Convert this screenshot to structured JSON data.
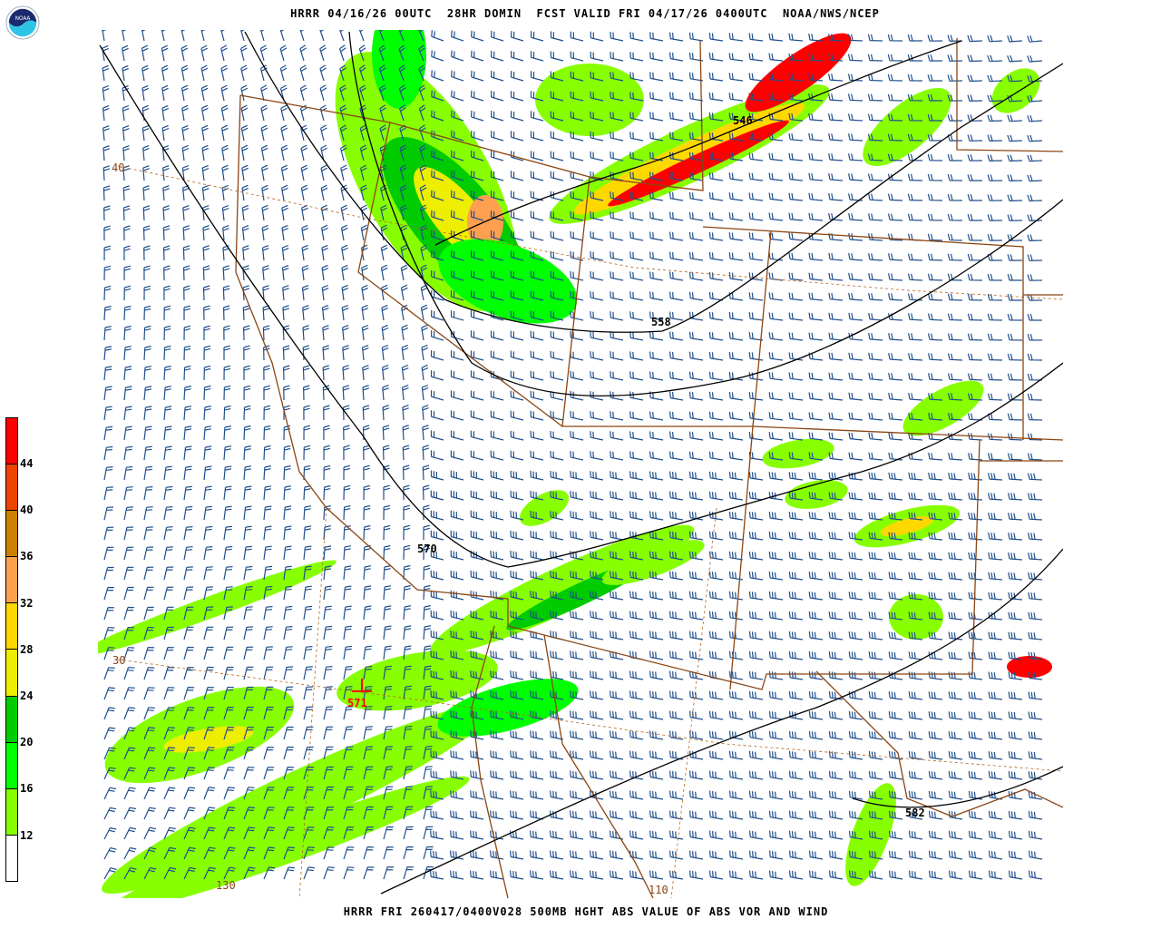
{
  "header": {
    "title": "HRRR 04/16/26 00UTC  28HR DOMIN  FCST VALID FRI 04/17/26 0400UTC  NOAA/NWS/NCEP"
  },
  "footer": {
    "caption": "HRRR FRI 260417/0400V028 500MB HGHT ABS VALUE OF ABS VOR AND WIND"
  },
  "logo": {
    "text": "NOAA"
  },
  "colorbar": {
    "labels": [
      "44",
      "40",
      "36",
      "32",
      "28",
      "24",
      "20",
      "16",
      "12"
    ],
    "colors": [
      "#ff0000",
      "#ee4400",
      "#cc8000",
      "#ffa050",
      "#ffd800",
      "#eeee00",
      "#00cc00",
      "#00ff00",
      "#88ff00",
      "#ffffff"
    ]
  },
  "map": {
    "contour_labels": [
      "546",
      "558",
      "570",
      "571",
      "582"
    ],
    "lat_labels": [
      "40",
      "30"
    ],
    "lon_labels": [
      "130",
      "110"
    ],
    "colors": {
      "contour": "#000000",
      "border": "#8b4513",
      "barb": "#1f4e8c",
      "label_low": "#ff0000"
    }
  }
}
